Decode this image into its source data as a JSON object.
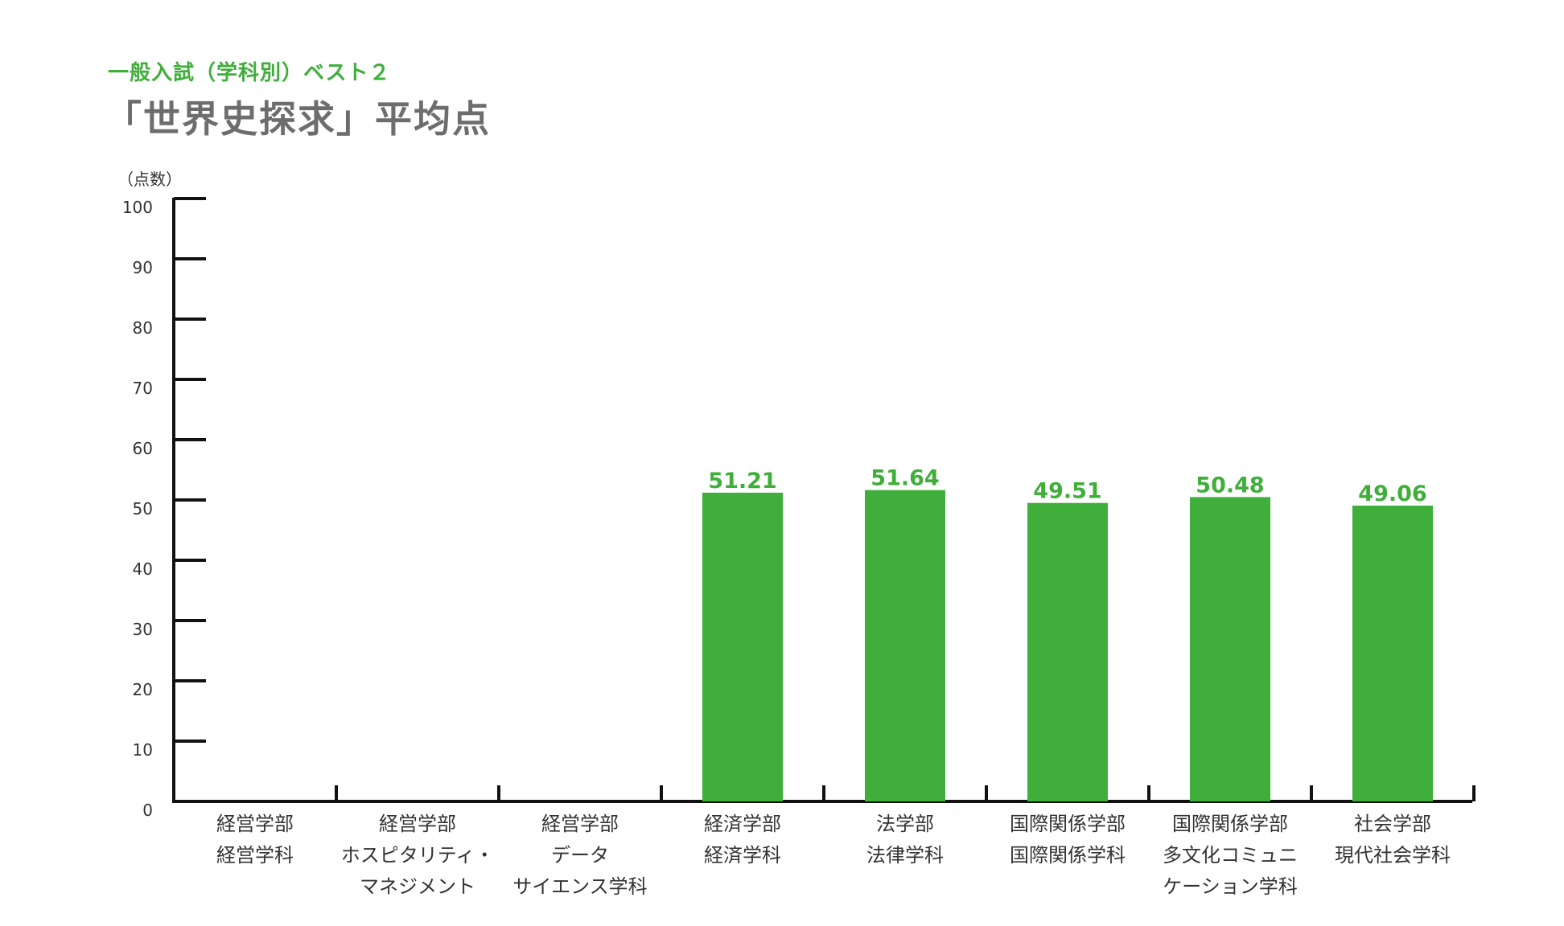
{
  "chart_data": {
    "type": "bar",
    "subtitle": "一般入試（学科別）ベスト２",
    "title": "「世界史探求」平均点",
    "ylabel": "（点数）",
    "ylim": [
      0,
      100
    ],
    "yticks": [
      0,
      10,
      20,
      30,
      40,
      50,
      60,
      70,
      80,
      90,
      100
    ],
    "grid": false,
    "categories": [
      [
        "経営学部",
        "経営学科"
      ],
      [
        "経営学部",
        "ホスピタリティ・",
        "マネジメント"
      ],
      [
        "経営学部",
        "データ",
        "サイエンス学科"
      ],
      [
        "経済学部",
        "経済学科"
      ],
      [
        "法学部",
        "法律学科"
      ],
      [
        "国際関係学部",
        "国際関係学科"
      ],
      [
        "国際関係学部",
        "多文化コミュニ",
        "ケーション学科"
      ],
      [
        "社会学部",
        "現代社会学科"
      ]
    ],
    "values": [
      null,
      null,
      null,
      51.21,
      51.64,
      49.51,
      50.48,
      49.06
    ],
    "labels": [
      "",
      "",
      "",
      "51.21",
      "51.64",
      "49.51",
      "50.48",
      "49.06"
    ],
    "colors": {
      "bar": "#3fae3a",
      "label": "#3fae3a",
      "axis": "#111111",
      "text": "#333333"
    }
  }
}
